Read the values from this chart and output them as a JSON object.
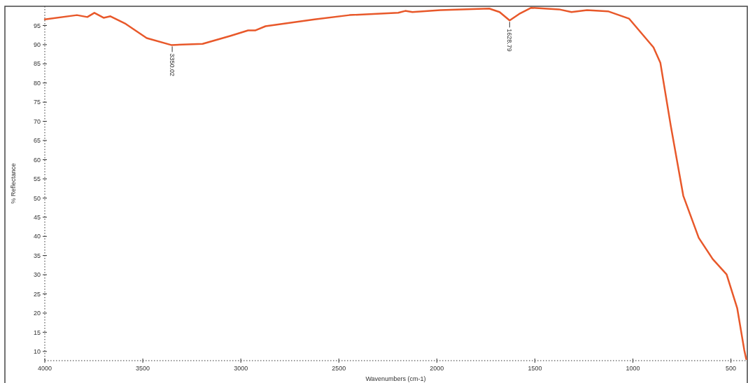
{
  "chart_data": {
    "type": "line",
    "xlabel": "Wavenumbers (cm-1)",
    "ylabel": "% Reflectance",
    "xlim": [
      4000,
      420
    ],
    "ylim": [
      7.6,
      100
    ],
    "xticks": [
      4000,
      3500,
      3000,
      2500,
      2000,
      1500,
      1000,
      500
    ],
    "yticks": [
      10,
      15,
      20,
      25,
      30,
      35,
      40,
      45,
      50,
      55,
      60,
      65,
      70,
      75,
      80,
      85,
      90,
      95
    ],
    "grid": false,
    "marker": "none",
    "line_style": "solid",
    "annotations": [
      {
        "text": "3350.02",
        "x": 3350.02,
        "y": 89.9
      },
      {
        "text": "1628.79",
        "x": 1628.79,
        "y": 96.3
      }
    ],
    "series": [
      {
        "color": "#e8582a",
        "x": [
          4000,
          3836,
          3783,
          3747,
          3700,
          3665,
          3587,
          3480,
          3355,
          3195,
          3052,
          2963,
          2927,
          2874,
          2624,
          2446,
          2197,
          2161,
          2125,
          1983,
          1733,
          1680,
          1628.79,
          1580,
          1519,
          1377,
          1313,
          1234,
          1127,
          1020,
          895,
          860,
          807,
          743,
          664,
          593,
          522,
          468,
          432,
          422
        ],
        "values": [
          96.6,
          97.7,
          97.2,
          98.3,
          97.0,
          97.4,
          95.4,
          91.7,
          89.9,
          90.2,
          92.3,
          93.7,
          93.7,
          94.8,
          96.6,
          97.7,
          98.3,
          98.8,
          98.5,
          99.0,
          99.4,
          98.5,
          96.3,
          98.0,
          99.6,
          99.2,
          98.5,
          99.0,
          98.7,
          96.8,
          89.3,
          85.3,
          68.9,
          50.6,
          39.6,
          34.1,
          30.1,
          21.3,
          10.4,
          8
        ]
      }
    ]
  }
}
